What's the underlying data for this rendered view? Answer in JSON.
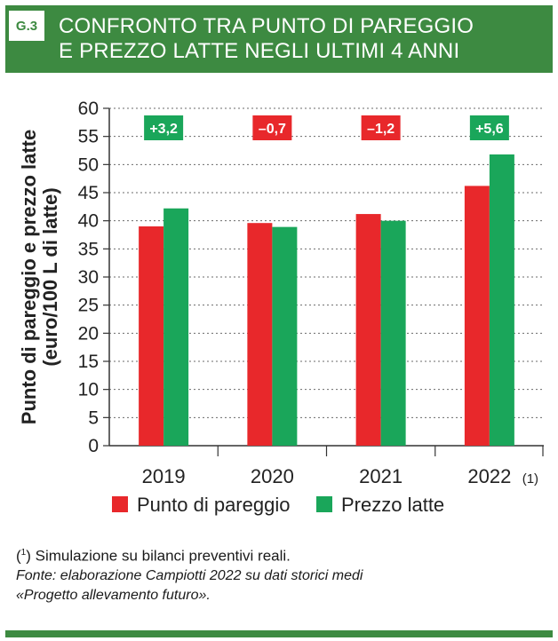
{
  "header": {
    "badge": "G.3",
    "title_line1": "CONFRONTO TRA PUNTO DI PAREGGIO",
    "title_line2": "E PREZZO LATTE NEGLI ULTIMI 4 ANNI"
  },
  "colors": {
    "brand_green": "#3d8a41",
    "punto_red": "#e8282b",
    "prezzo_green": "#1aa65a"
  },
  "chart_data": {
    "type": "bar",
    "ylabel_line1": "Punto di pareggio e prezzo latte",
    "ylabel_line2": "(euro/100 L di latte)",
    "ylim": [
      0,
      60
    ],
    "yticks": [
      0,
      5,
      10,
      15,
      20,
      25,
      30,
      35,
      40,
      45,
      50,
      55,
      60
    ],
    "grid": "horizontal dotted",
    "categories": [
      "2019",
      "2020",
      "2021",
      "2022"
    ],
    "category_notes": [
      "",
      "",
      "",
      "(1)"
    ],
    "series": [
      {
        "name": "Punto di pareggio",
        "color": "#e8282b",
        "values": [
          39.0,
          39.6,
          41.2,
          46.2
        ]
      },
      {
        "name": "Prezzo latte",
        "color": "#1aa65a",
        "values": [
          42.2,
          38.9,
          40.0,
          51.8
        ]
      }
    ],
    "differences": [
      {
        "label": "+3,2",
        "color": "#1aa65a"
      },
      {
        "label": "–0,7",
        "color": "#e8282b"
      },
      {
        "label": "–1,2",
        "color": "#e8282b"
      },
      {
        "label": "+5,6",
        "color": "#1aa65a"
      }
    ],
    "legend_position": "bottom"
  },
  "notes": {
    "note1_marker": "1",
    "note1_text": "Simulazione su bilanci preventivi reali.",
    "source_line1": "Fonte: elaborazione Campiotti 2022 su dati storici medi",
    "source_line2": "«Progetto allevamento futuro»."
  }
}
